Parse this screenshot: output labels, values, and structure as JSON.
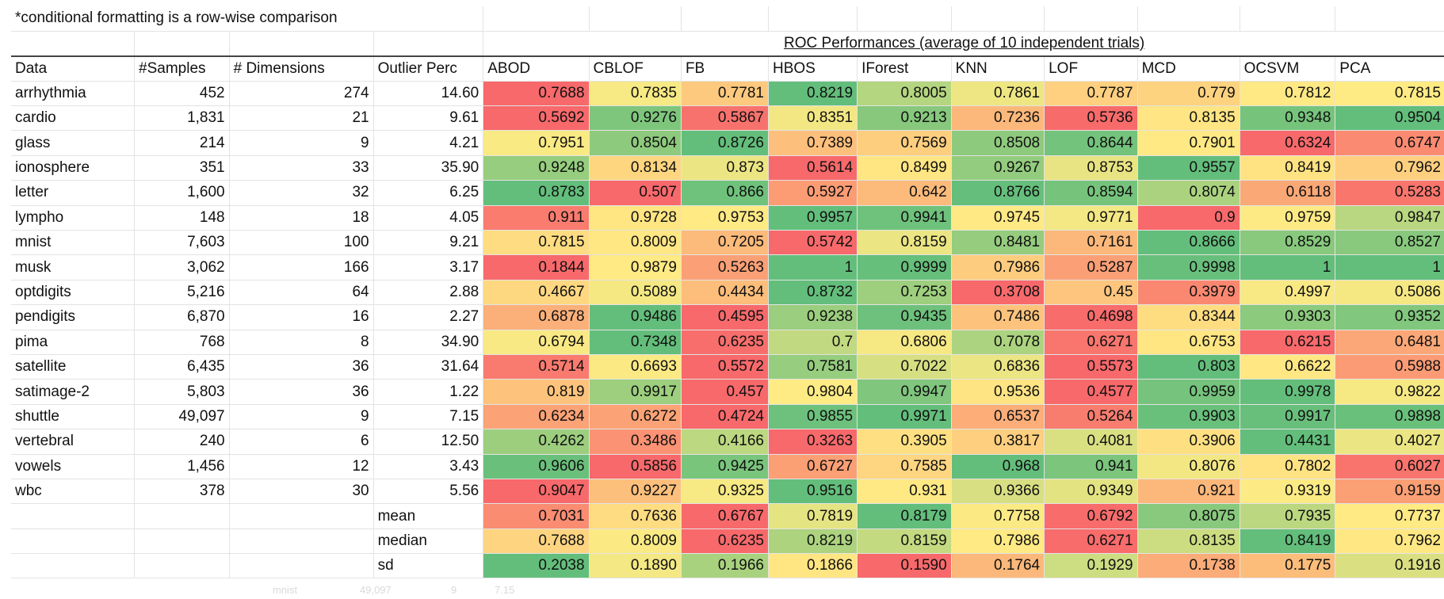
{
  "note": "*conditional formatting is a row-wise comparison",
  "title": "ROC Performances (average of 10 independent trials)",
  "columns": [
    "Data",
    "#Samples",
    "# Dimensions",
    "Outlier Perc",
    "ABOD",
    "CBLOF",
    "FB",
    "HBOS",
    "IForest",
    "KNN",
    "LOF",
    "MCD",
    "OCSVM",
    "PCA"
  ],
  "rows": [
    {
      "name": "arrhythmia",
      "samples": "452",
      "dims": "274",
      "perc": "14.60",
      "scores": [
        "0.7688",
        "0.7835",
        "0.7781",
        "0.8219",
        "0.8005",
        "0.7861",
        "0.7787",
        "0.779",
        "0.7812",
        "0.7815"
      ]
    },
    {
      "name": "cardio",
      "samples": "1,831",
      "dims": "21",
      "perc": "9.61",
      "scores": [
        "0.5692",
        "0.9276",
        "0.5867",
        "0.8351",
        "0.9213",
        "0.7236",
        "0.5736",
        "0.8135",
        "0.9348",
        "0.9504"
      ]
    },
    {
      "name": "glass",
      "samples": "214",
      "dims": "9",
      "perc": "4.21",
      "scores": [
        "0.7951",
        "0.8504",
        "0.8726",
        "0.7389",
        "0.7569",
        "0.8508",
        "0.8644",
        "0.7901",
        "0.6324",
        "0.6747"
      ]
    },
    {
      "name": "ionosphere",
      "samples": "351",
      "dims": "33",
      "perc": "35.90",
      "scores": [
        "0.9248",
        "0.8134",
        "0.873",
        "0.5614",
        "0.8499",
        "0.9267",
        "0.8753",
        "0.9557",
        "0.8419",
        "0.7962"
      ]
    },
    {
      "name": "letter",
      "samples": "1,600",
      "dims": "32",
      "perc": "6.25",
      "scores": [
        "0.8783",
        "0.507",
        "0.866",
        "0.5927",
        "0.642",
        "0.8766",
        "0.8594",
        "0.8074",
        "0.6118",
        "0.5283"
      ]
    },
    {
      "name": "lympho",
      "samples": "148",
      "dims": "18",
      "perc": "4.05",
      "scores": [
        "0.911",
        "0.9728",
        "0.9753",
        "0.9957",
        "0.9941",
        "0.9745",
        "0.9771",
        "0.9",
        "0.9759",
        "0.9847"
      ]
    },
    {
      "name": "mnist",
      "samples": "7,603",
      "dims": "100",
      "perc": "9.21",
      "scores": [
        "0.7815",
        "0.8009",
        "0.7205",
        "0.5742",
        "0.8159",
        "0.8481",
        "0.7161",
        "0.8666",
        "0.8529",
        "0.8527"
      ]
    },
    {
      "name": "musk",
      "samples": "3,062",
      "dims": "166",
      "perc": "3.17",
      "scores": [
        "0.1844",
        "0.9879",
        "0.5263",
        "1",
        "0.9999",
        "0.7986",
        "0.5287",
        "0.9998",
        "1",
        "1"
      ]
    },
    {
      "name": "optdigits",
      "samples": "5,216",
      "dims": "64",
      "perc": "2.88",
      "scores": [
        "0.4667",
        "0.5089",
        "0.4434",
        "0.8732",
        "0.7253",
        "0.3708",
        "0.45",
        "0.3979",
        "0.4997",
        "0.5086"
      ]
    },
    {
      "name": "pendigits",
      "samples": "6,870",
      "dims": "16",
      "perc": "2.27",
      "scores": [
        "0.6878",
        "0.9486",
        "0.4595",
        "0.9238",
        "0.9435",
        "0.7486",
        "0.4698",
        "0.8344",
        "0.9303",
        "0.9352"
      ]
    },
    {
      "name": "pima",
      "samples": "768",
      "dims": "8",
      "perc": "34.90",
      "scores": [
        "0.6794",
        "0.7348",
        "0.6235",
        "0.7",
        "0.6806",
        "0.7078",
        "0.6271",
        "0.6753",
        "0.6215",
        "0.6481"
      ]
    },
    {
      "name": "satellite",
      "samples": "6,435",
      "dims": "36",
      "perc": "31.64",
      "scores": [
        "0.5714",
        "0.6693",
        "0.5572",
        "0.7581",
        "0.7022",
        "0.6836",
        "0.5573",
        "0.803",
        "0.6622",
        "0.5988"
      ]
    },
    {
      "name": "satimage-2",
      "samples": "5,803",
      "dims": "36",
      "perc": "1.22",
      "scores": [
        "0.819",
        "0.9917",
        "0.457",
        "0.9804",
        "0.9947",
        "0.9536",
        "0.4577",
        "0.9959",
        "0.9978",
        "0.9822"
      ]
    },
    {
      "name": "shuttle",
      "samples": "49,097",
      "dims": "9",
      "perc": "7.15",
      "scores": [
        "0.6234",
        "0.6272",
        "0.4724",
        "0.9855",
        "0.9971",
        "0.6537",
        "0.5264",
        "0.9903",
        "0.9917",
        "0.9898"
      ]
    },
    {
      "name": "vertebral",
      "samples": "240",
      "dims": "6",
      "perc": "12.50",
      "scores": [
        "0.4262",
        "0.3486",
        "0.4166",
        "0.3263",
        "0.3905",
        "0.3817",
        "0.4081",
        "0.3906",
        "0.4431",
        "0.4027"
      ]
    },
    {
      "name": "vowels",
      "samples": "1,456",
      "dims": "12",
      "perc": "3.43",
      "scores": [
        "0.9606",
        "0.5856",
        "0.9425",
        "0.6727",
        "0.7585",
        "0.968",
        "0.941",
        "0.8076",
        "0.7802",
        "0.6027"
      ]
    },
    {
      "name": "wbc",
      "samples": "378",
      "dims": "30",
      "perc": "5.56",
      "scores": [
        "0.9047",
        "0.9227",
        "0.9325",
        "0.9516",
        "0.931",
        "0.9366",
        "0.9349",
        "0.921",
        "0.9319",
        "0.9159"
      ]
    }
  ],
  "summary": [
    {
      "label": "mean",
      "scores": [
        "0.7031",
        "0.7636",
        "0.6767",
        "0.7819",
        "0.8179",
        "0.7758",
        "0.6792",
        "0.8075",
        "0.7935",
        "0.7737"
      ]
    },
    {
      "label": "median",
      "scores": [
        "0.7688",
        "0.8009",
        "0.6235",
        "0.8219",
        "0.8159",
        "0.7986",
        "0.6271",
        "0.8135",
        "0.8419",
        "0.7962"
      ]
    },
    {
      "label": "sd",
      "scores": [
        "0.2038",
        "0.1890",
        "0.1966",
        "0.1866",
        "0.1590",
        "0.1764",
        "0.1929",
        "0.1738",
        "0.1775",
        "0.1916"
      ]
    }
  ],
  "ghost_row": [
    "mnist",
    "49,097",
    "9",
    "7.15"
  ],
  "colors": {
    "low": "#f8696b",
    "mid": "#ffeb84",
    "high": "#63be7b"
  }
}
